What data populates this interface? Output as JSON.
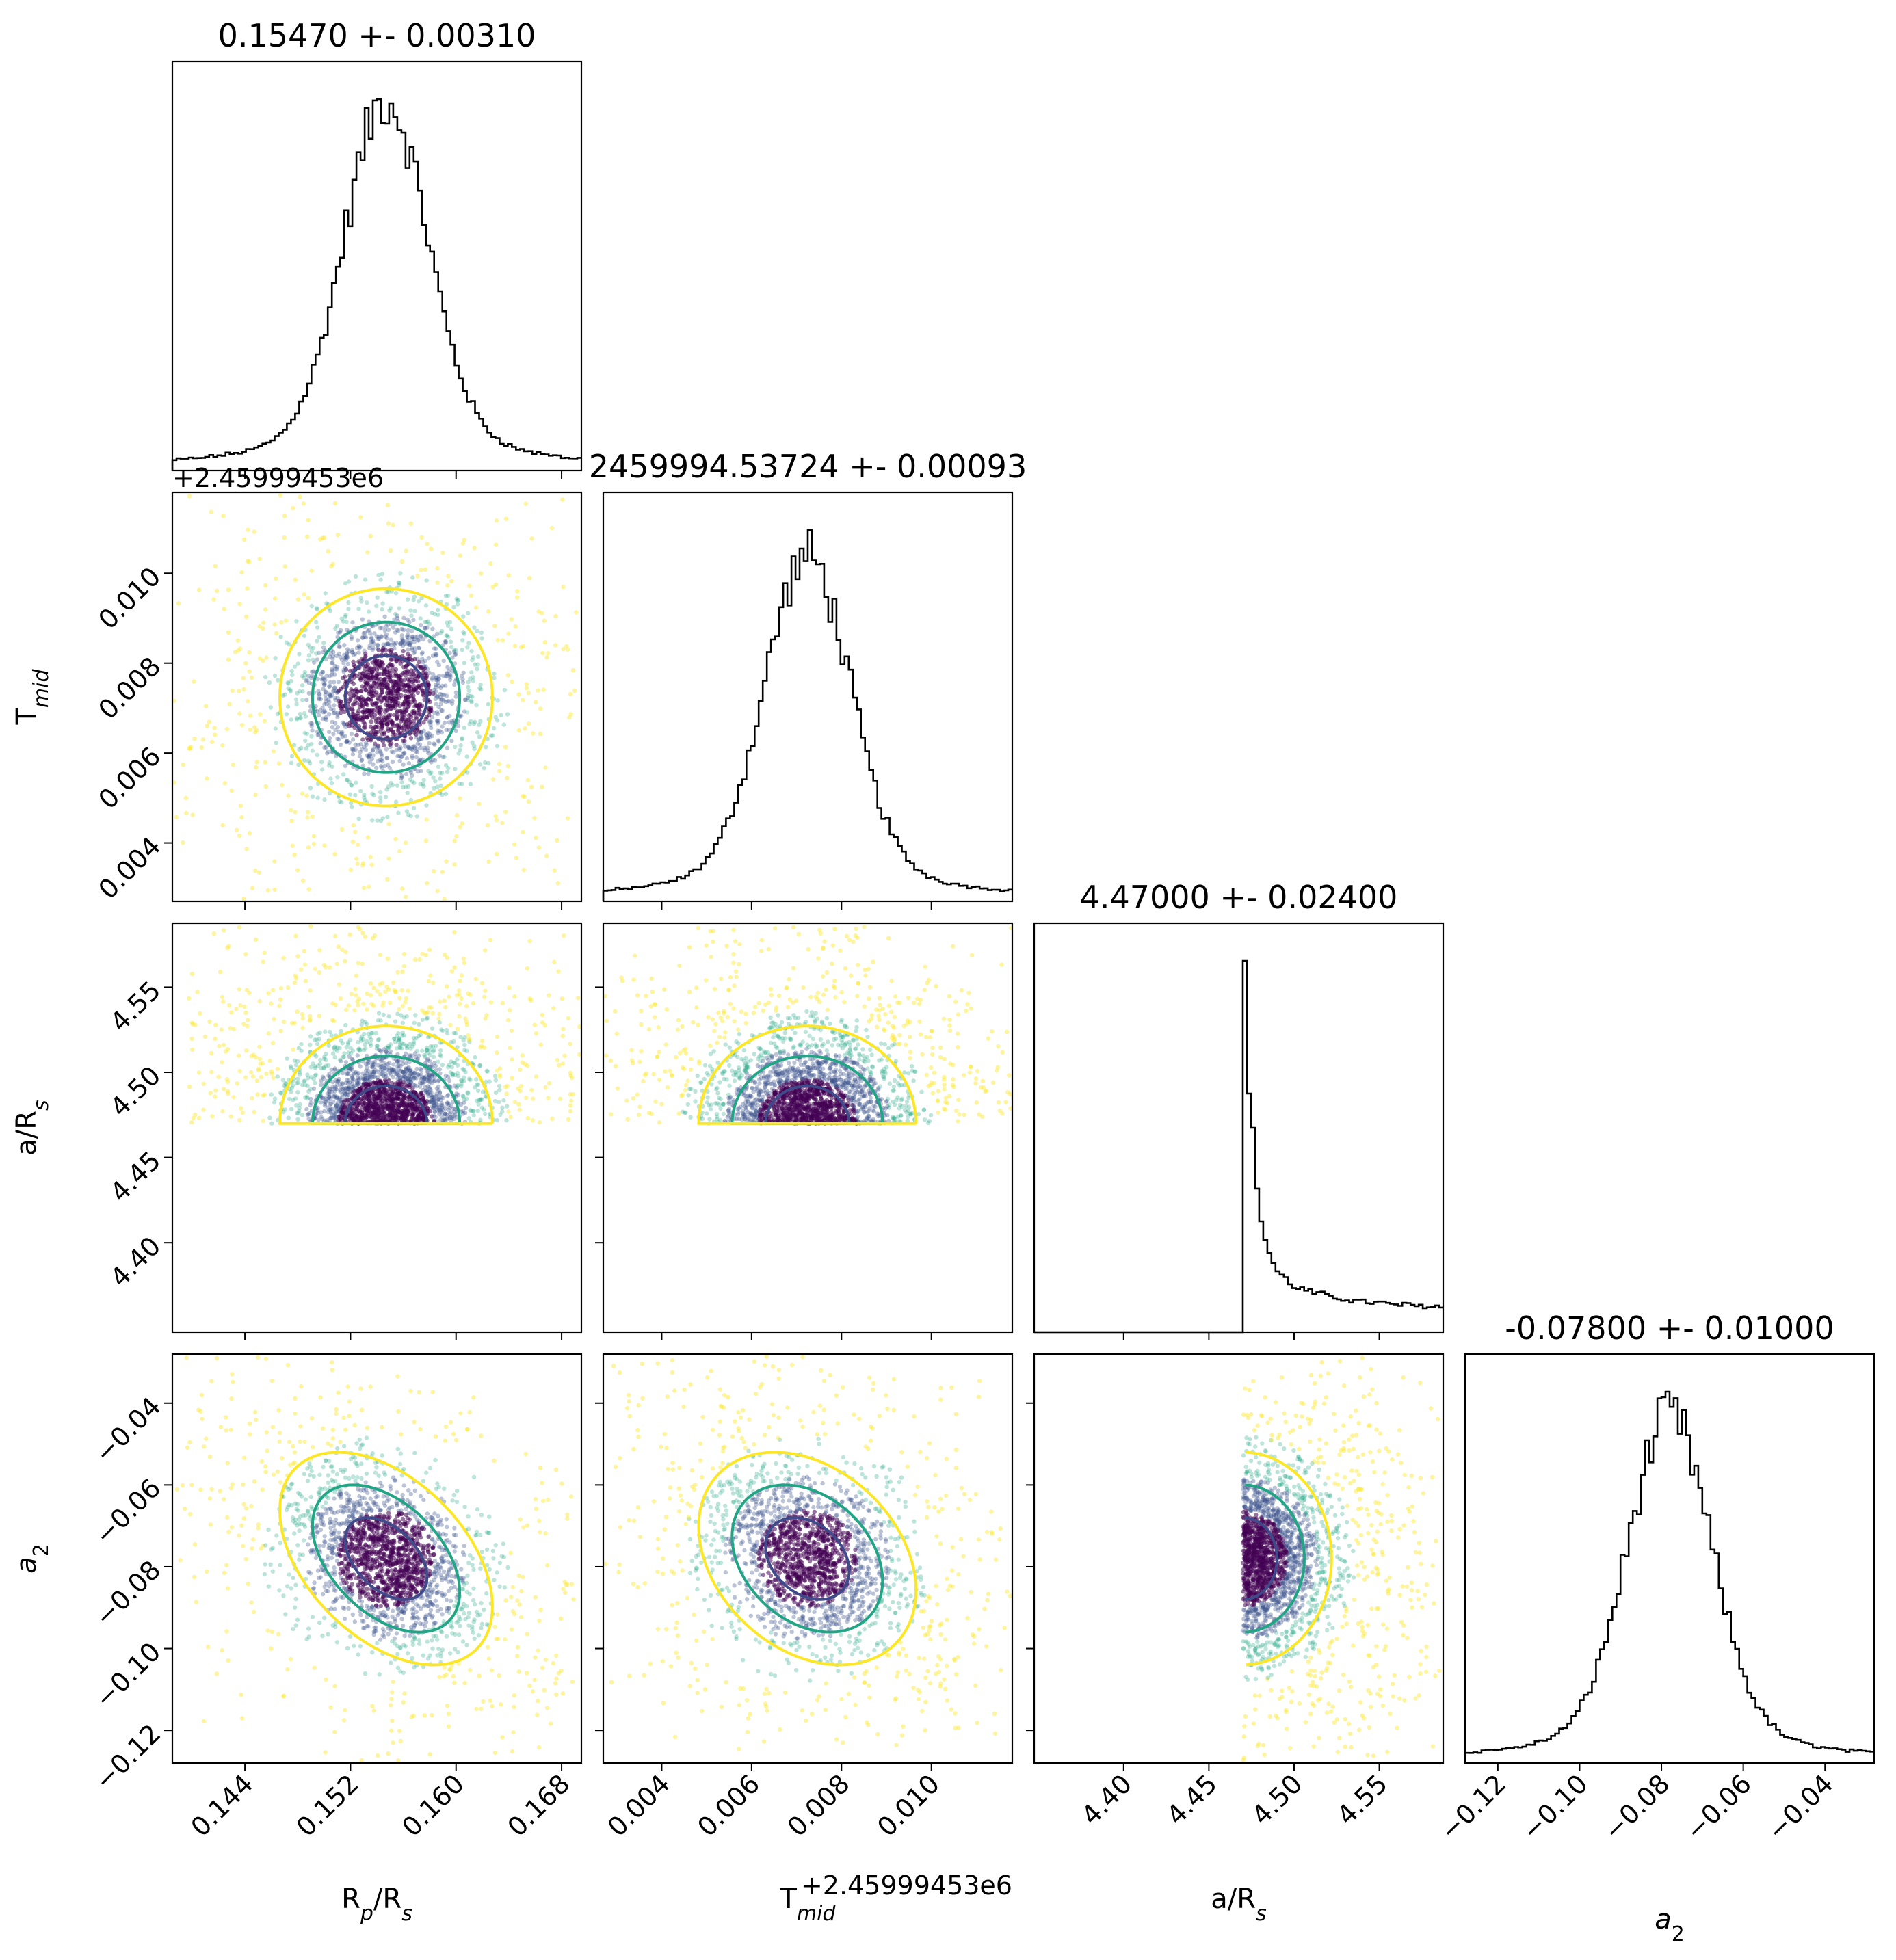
{
  "chart_data": {
    "type": "corner",
    "parameters": [
      {
        "key": "rp",
        "label_main": "R",
        "label_sub": "p",
        "label_rest": "/R",
        "label_sub2": "s",
        "range": [
          0.1385,
          0.1695
        ],
        "ticks": [
          0.144,
          0.152,
          0.16,
          0.168
        ],
        "tick_labels": [
          "0.144",
          "0.152",
          "0.160",
          "0.168"
        ],
        "title": "0.15470 +- 0.00310",
        "center": 0.1547,
        "sigma": 0.0031
      },
      {
        "key": "tmid",
        "label_main": "T",
        "label_sub": "mid",
        "range": [
          0.0027,
          0.0118
        ],
        "ticks": [
          0.004,
          0.006,
          0.008,
          0.01
        ],
        "tick_labels": [
          "0.004",
          "0.006",
          "0.008",
          "0.010"
        ],
        "title": "2459994.53724 +- 0.00093",
        "center": 0.00724,
        "sigma": 0.00093,
        "offset_text": "+2.45999453e6"
      },
      {
        "key": "ars",
        "label_main": "a/R",
        "label_sub": "s",
        "range": [
          4.3475,
          4.5875
        ],
        "ticks": [
          4.4,
          4.45,
          4.5,
          4.55
        ],
        "tick_labels": [
          "4.40",
          "4.45",
          "4.50",
          "4.55"
        ],
        "title": "4.47000 +- 0.02400",
        "center": 4.47,
        "sigma": 0.024,
        "lower_bound": 4.47
      },
      {
        "key": "a2",
        "label_main": "a",
        "label_sub": "2",
        "italic": true,
        "range": [
          -0.128,
          -0.028
        ],
        "ticks": [
          -0.12,
          -0.1,
          -0.08,
          -0.06,
          -0.04
        ],
        "tick_labels": [
          "−0.12",
          "−0.10",
          "−0.08",
          "−0.06",
          "−0.04"
        ],
        "title": "-0.07800 +- 0.01000",
        "center": -0.078,
        "sigma": 0.01
      }
    ],
    "histogram_peak_heights": [
      1.0,
      1.0,
      1.0,
      1.0
    ],
    "colors": {
      "hist_line": "#000000",
      "contour_inner": "#3e4a89",
      "contour_mid": "#21a585",
      "contour_outer": "#fde725",
      "scatter_dark": "#440154"
    }
  }
}
